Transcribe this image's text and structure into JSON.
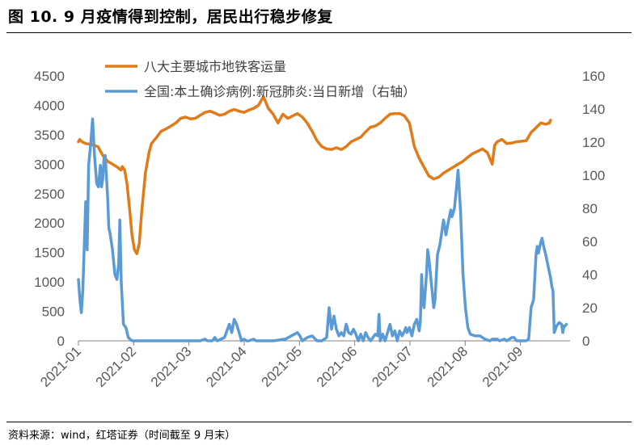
{
  "title": "图 10. 9 月疫情得到控制，居民出行稳步修复",
  "source": "资料来源：wind，红塔证券（时间截至 9 月末）",
  "chart_data": {
    "type": "line",
    "x_categories": [
      "2021-01",
      "2021-02",
      "2021-03",
      "2021-04",
      "2021-05",
      "2021-06",
      "2021-07",
      "2021-08",
      "2021-09"
    ],
    "y_left": {
      "min": 0,
      "max": 4500,
      "ticks": [
        "0",
        "500",
        "1000",
        "1500",
        "2000",
        "2500",
        "3000",
        "3500",
        "4000",
        "4500"
      ]
    },
    "y_right": {
      "min": 0,
      "max": 160,
      "ticks": [
        "0",
        "20",
        "40",
        "60",
        "80",
        "100",
        "120",
        "140",
        "160"
      ]
    },
    "series": [
      {
        "name": "八大主要城市地铁客运量",
        "axis": "left",
        "color": "#E07B1A",
        "points": [
          [
            0.0,
            3380
          ],
          [
            0.05,
            3420
          ],
          [
            0.15,
            3380
          ],
          [
            0.3,
            3350
          ],
          [
            0.5,
            3340
          ],
          [
            0.8,
            3300
          ],
          [
            1.0,
            3150
          ],
          [
            1.2,
            3050
          ],
          [
            1.4,
            3000
          ],
          [
            1.6,
            2950
          ],
          [
            1.75,
            2900
          ],
          [
            1.8,
            2960
          ],
          [
            1.9,
            2900
          ],
          [
            2.0,
            2650
          ],
          [
            2.1,
            2250
          ],
          [
            2.2,
            1800
          ],
          [
            2.3,
            1550
          ],
          [
            2.4,
            1480
          ],
          [
            2.5,
            1650
          ],
          [
            2.6,
            2200
          ],
          [
            2.75,
            2850
          ],
          [
            2.9,
            3200
          ],
          [
            3.0,
            3350
          ],
          [
            3.2,
            3450
          ],
          [
            3.4,
            3560
          ],
          [
            3.6,
            3600
          ],
          [
            3.8,
            3650
          ],
          [
            4.0,
            3700
          ],
          [
            4.2,
            3780
          ],
          [
            4.4,
            3800
          ],
          [
            4.6,
            3770
          ],
          [
            4.8,
            3780
          ],
          [
            5.0,
            3830
          ],
          [
            5.2,
            3880
          ],
          [
            5.4,
            3900
          ],
          [
            5.6,
            3870
          ],
          [
            5.8,
            3830
          ],
          [
            6.0,
            3850
          ],
          [
            6.2,
            3900
          ],
          [
            6.4,
            3930
          ],
          [
            6.6,
            3900
          ],
          [
            6.8,
            3880
          ],
          [
            7.0,
            3920
          ],
          [
            7.2,
            3950
          ],
          [
            7.4,
            4000
          ],
          [
            7.6,
            4150
          ],
          [
            7.8,
            3950
          ],
          [
            8.0,
            3850
          ],
          [
            8.2,
            3700
          ],
          [
            8.4,
            3850
          ],
          [
            8.6,
            3780
          ],
          [
            8.8,
            3820
          ],
          [
            9.0,
            3860
          ],
          [
            9.2,
            3800
          ],
          [
            9.4,
            3700
          ],
          [
            9.6,
            3560
          ],
          [
            9.8,
            3400
          ],
          [
            10.0,
            3300
          ],
          [
            10.2,
            3260
          ],
          [
            10.4,
            3250
          ],
          [
            10.6,
            3280
          ],
          [
            10.8,
            3250
          ],
          [
            11.0,
            3300
          ],
          [
            11.2,
            3380
          ],
          [
            11.4,
            3420
          ],
          [
            11.6,
            3460
          ],
          [
            11.8,
            3550
          ],
          [
            12.0,
            3630
          ],
          [
            12.2,
            3650
          ],
          [
            12.4,
            3700
          ],
          [
            12.6,
            3780
          ],
          [
            12.8,
            3850
          ],
          [
            13.0,
            3860
          ],
          [
            13.2,
            3860
          ],
          [
            13.4,
            3820
          ],
          [
            13.6,
            3700
          ],
          [
            13.7,
            3500
          ],
          [
            13.8,
            3300
          ],
          [
            14.0,
            3100
          ],
          [
            14.2,
            2950
          ],
          [
            14.4,
            2800
          ],
          [
            14.6,
            2750
          ],
          [
            14.8,
            2780
          ],
          [
            15.0,
            2850
          ],
          [
            15.2,
            2900
          ],
          [
            15.4,
            2950
          ],
          [
            15.6,
            3000
          ],
          [
            15.8,
            3050
          ],
          [
            16.0,
            3120
          ],
          [
            16.2,
            3180
          ],
          [
            16.4,
            3220
          ],
          [
            16.6,
            3260
          ],
          [
            16.8,
            3200
          ],
          [
            17.0,
            3000
          ],
          [
            17.1,
            3320
          ],
          [
            17.2,
            3380
          ],
          [
            17.4,
            3420
          ],
          [
            17.6,
            3350
          ],
          [
            17.8,
            3360
          ],
          [
            18.0,
            3380
          ],
          [
            18.2,
            3390
          ],
          [
            18.4,
            3400
          ],
          [
            18.6,
            3540
          ],
          [
            18.8,
            3620
          ],
          [
            19.0,
            3700
          ],
          [
            19.2,
            3680
          ],
          [
            19.35,
            3700
          ],
          [
            19.4,
            3750
          ]
        ]
      },
      {
        "name": "全国:本土确诊病例:新冠肺炎:当日新增（右轴）",
        "axis": "right",
        "color": "#5B9BD5",
        "points": [
          [
            0.0,
            37
          ],
          [
            0.06,
            25
          ],
          [
            0.12,
            17
          ],
          [
            0.18,
            30
          ],
          [
            0.25,
            62
          ],
          [
            0.3,
            84
          ],
          [
            0.36,
            55
          ],
          [
            0.42,
            106
          ],
          [
            0.5,
            118
          ],
          [
            0.58,
            134
          ],
          [
            0.66,
            112
          ],
          [
            0.75,
            95
          ],
          [
            0.82,
            93
          ],
          [
            0.9,
            106
          ],
          [
            0.95,
            93
          ],
          [
            1.0,
            98
          ],
          [
            1.05,
            110
          ],
          [
            1.1,
            112
          ],
          [
            1.2,
            87
          ],
          [
            1.25,
            68
          ],
          [
            1.3,
            65
          ],
          [
            1.4,
            55
          ],
          [
            1.5,
            40
          ],
          [
            1.58,
            37
          ],
          [
            1.65,
            46
          ],
          [
            1.7,
            73
          ],
          [
            1.76,
            35
          ],
          [
            1.85,
            10
          ],
          [
            1.95,
            8
          ],
          [
            2.05,
            2
          ],
          [
            2.2,
            0
          ],
          [
            2.5,
            0
          ],
          [
            3.0,
            0
          ],
          [
            3.5,
            0
          ],
          [
            4.0,
            0
          ],
          [
            5.0,
            0
          ],
          [
            5.2,
            1
          ],
          [
            5.3,
            0
          ],
          [
            5.5,
            0
          ],
          [
            5.6,
            2
          ],
          [
            5.7,
            0
          ],
          [
            6.0,
            2
          ],
          [
            6.1,
            6
          ],
          [
            6.2,
            10
          ],
          [
            6.3,
            5
          ],
          [
            6.4,
            13
          ],
          [
            6.5,
            10
          ],
          [
            6.6,
            5
          ],
          [
            6.7,
            0
          ],
          [
            6.8,
            1
          ],
          [
            6.9,
            0
          ],
          [
            7.0,
            0
          ],
          [
            7.2,
            1
          ],
          [
            7.3,
            0
          ],
          [
            7.5,
            0
          ],
          [
            8.0,
            0
          ],
          [
            8.5,
            1
          ],
          [
            9.0,
            5
          ],
          [
            9.1,
            3
          ],
          [
            9.2,
            0
          ],
          [
            9.4,
            2
          ],
          [
            9.6,
            3
          ],
          [
            9.8,
            0
          ],
          [
            10.0,
            0
          ],
          [
            10.2,
            2
          ],
          [
            10.3,
            20
          ],
          [
            10.4,
            7
          ],
          [
            10.5,
            15
          ],
          [
            10.6,
            7
          ],
          [
            10.7,
            3
          ],
          [
            10.8,
            5
          ],
          [
            10.9,
            3
          ],
          [
            11.0,
            10
          ],
          [
            11.1,
            5
          ],
          [
            11.2,
            4
          ],
          [
            11.3,
            7
          ],
          [
            11.4,
            4
          ],
          [
            11.5,
            0
          ],
          [
            11.6,
            4
          ],
          [
            11.7,
            0
          ],
          [
            11.8,
            5
          ],
          [
            11.9,
            2
          ],
          [
            12.0,
            0
          ],
          [
            12.2,
            4
          ],
          [
            12.3,
            3
          ],
          [
            12.35,
            16
          ],
          [
            12.4,
            0
          ],
          [
            12.5,
            4
          ],
          [
            12.6,
            0
          ],
          [
            12.7,
            5
          ],
          [
            12.8,
            10
          ],
          [
            12.9,
            3
          ],
          [
            13.0,
            6
          ],
          [
            13.1,
            0
          ],
          [
            13.2,
            6
          ],
          [
            13.3,
            3
          ],
          [
            13.4,
            6
          ],
          [
            13.45,
            8
          ],
          [
            13.5,
            5
          ],
          [
            13.6,
            8
          ],
          [
            13.7,
            3
          ],
          [
            13.8,
            10
          ],
          [
            13.9,
            13
          ],
          [
            14.0,
            6
          ],
          [
            14.05,
            12
          ],
          [
            14.1,
            40
          ],
          [
            14.15,
            25
          ],
          [
            14.2,
            20
          ],
          [
            14.3,
            40
          ],
          [
            14.35,
            55
          ],
          [
            14.4,
            50
          ],
          [
            14.5,
            35
          ],
          [
            14.6,
            20
          ],
          [
            14.65,
            25
          ],
          [
            14.75,
            52
          ],
          [
            14.85,
            58
          ],
          [
            14.9,
            63
          ],
          [
            15.0,
            73
          ],
          [
            15.1,
            64
          ],
          [
            15.2,
            72
          ],
          [
            15.3,
            79
          ],
          [
            15.35,
            75
          ],
          [
            15.45,
            80
          ],
          [
            15.55,
            95
          ],
          [
            15.6,
            103
          ],
          [
            15.7,
            78
          ],
          [
            15.8,
            40
          ],
          [
            15.9,
            20
          ],
          [
            16.0,
            8
          ],
          [
            16.1,
            4
          ],
          [
            16.3,
            3
          ],
          [
            16.5,
            3
          ],
          [
            16.6,
            2
          ],
          [
            16.7,
            1
          ],
          [
            16.9,
            0
          ],
          [
            17.0,
            1
          ],
          [
            17.2,
            1
          ],
          [
            17.3,
            0
          ],
          [
            17.5,
            1
          ],
          [
            17.6,
            0
          ],
          [
            17.8,
            2
          ],
          [
            17.9,
            2
          ],
          [
            18.0,
            0
          ],
          [
            18.2,
            0
          ],
          [
            18.4,
            0
          ],
          [
            18.5,
            1
          ],
          [
            18.6,
            20
          ],
          [
            18.7,
            25
          ],
          [
            18.8,
            52
          ],
          [
            18.85,
            57
          ],
          [
            18.9,
            53
          ],
          [
            19.0,
            60
          ],
          [
            19.05,
            62
          ],
          [
            19.1,
            58
          ],
          [
            19.2,
            52
          ],
          [
            19.3,
            45
          ],
          [
            19.4,
            38
          ],
          [
            19.45,
            33
          ],
          [
            19.5,
            30
          ],
          [
            19.55,
            5
          ],
          [
            19.65,
            9
          ],
          [
            19.75,
            11
          ],
          [
            19.85,
            10
          ],
          [
            19.9,
            5
          ],
          [
            19.95,
            9
          ],
          [
            20.0,
            9
          ],
          [
            20.05,
            10
          ]
        ]
      }
    ],
    "grid": false,
    "legend_position": "top-left"
  },
  "colors": {
    "orange": "#E07B1A",
    "blue": "#5B9BD5",
    "axis": "#808080",
    "tick_text": "#595959"
  }
}
